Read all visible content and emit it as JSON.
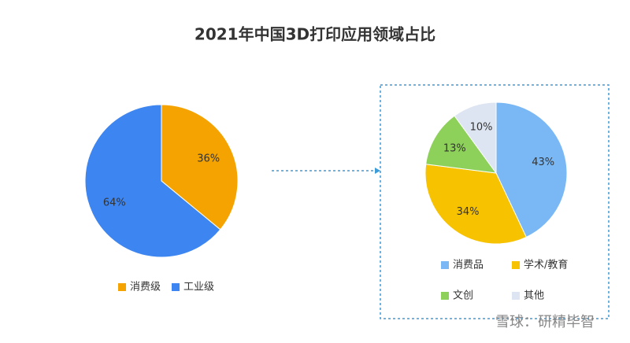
{
  "title": "2021年中国3D打印应用领域占比",
  "watermark": "雪球：研精毕智",
  "chart_data": [
    {
      "type": "pie",
      "categories": [
        "消费级",
        "工业级"
      ],
      "values": [
        36,
        64
      ],
      "value_labels": [
        "36%",
        "64%"
      ],
      "colors": [
        "#f5a300",
        "#3d85f0"
      ]
    },
    {
      "type": "pie",
      "categories": [
        "消费品",
        "学术/教育",
        "文创",
        "其他"
      ],
      "values": [
        43,
        34,
        13,
        10
      ],
      "value_labels": [
        "43%",
        "34%",
        "13%",
        "10%"
      ],
      "colors": [
        "#7ab8f5",
        "#f7c200",
        "#8ed15a",
        "#dde4f2"
      ]
    }
  ]
}
